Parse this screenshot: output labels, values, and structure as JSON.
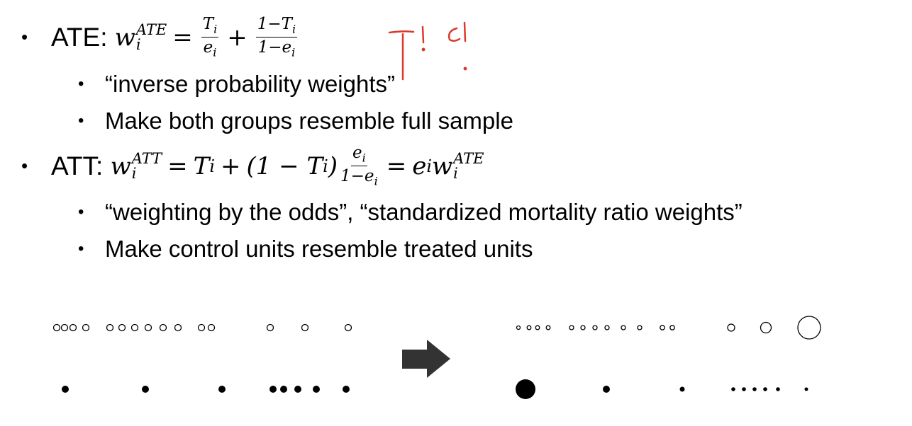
{
  "items": [
    {
      "label": "ATE:",
      "formula": {
        "w": "w",
        "w_sub": "i",
        "w_sup": "ATE",
        "eq": "=",
        "frac1": {
          "num": "T",
          "num_sub": "i",
          "den": "e",
          "den_sub": "i"
        },
        "plus": "+",
        "frac2": {
          "num": "1−T",
          "num_sub": "i",
          "den": "1−e",
          "den_sub": "i"
        }
      },
      "subitems": [
        "“inverse probability weights”",
        "Make both groups resemble full sample"
      ]
    },
    {
      "label": "ATT:",
      "formula": {
        "w": "w",
        "w_sub": "i",
        "w_sup": "ATT",
        "eq": "=",
        "t": "T",
        "t_sub": "i",
        "plus": "+",
        "paren_open": "(1 − T",
        "paren_sub": "i",
        "paren_close": ")",
        "frac": {
          "num": "e",
          "num_sub": "i",
          "den": "1−e",
          "den_sub": "i"
        },
        "eq2": "=",
        "e": "e",
        "e_sub": "i",
        "w2": "w",
        "w2_sub": "i",
        "w2_sup": "ATE"
      },
      "subitems": [
        "“weighting by the odds”, “standardized mortality ratio weights”",
        "Make control units resemble treated units"
      ]
    }
  ]
}
